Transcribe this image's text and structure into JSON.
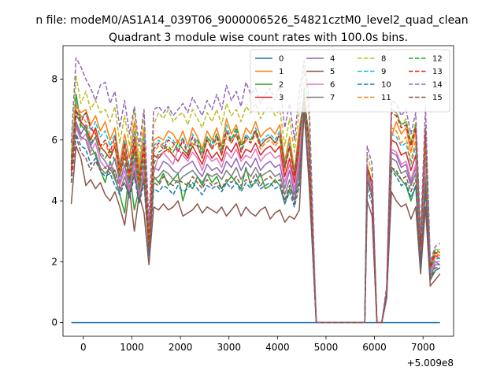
{
  "suptitle": "n file: modeM0/AS1A14_039T06_9000006526_54821cztM0_level2_quad_clean",
  "chart_data": {
    "type": "line",
    "title": "Quadrant 3 module wise count rates with 100.0s bins.",
    "xlabel": "",
    "ylabel": "",
    "x_offset_label": "+5.009e8",
    "xlim": [
      -420,
      7630
    ],
    "ylim": [
      -0.45,
      9.1
    ],
    "xticks": [
      0,
      1000,
      2000,
      3000,
      4000,
      5000,
      6000,
      7000
    ],
    "yticks": [
      0,
      2,
      4,
      6,
      8
    ],
    "grid": false,
    "legend": {
      "placement": "top-right",
      "columns": 4
    },
    "x": [
      -250,
      -150,
      -50,
      50,
      150,
      250,
      350,
      450,
      550,
      650,
      750,
      850,
      950,
      1050,
      1150,
      1250,
      1350,
      1450,
      1550,
      1650,
      1750,
      1850,
      1950,
      2050,
      2150,
      2250,
      2350,
      2450,
      2550,
      2650,
      2750,
      2850,
      2950,
      3050,
      3150,
      3250,
      3350,
      3450,
      3550,
      3650,
      3750,
      3850,
      3950,
      4050,
      4150,
      4250,
      4350,
      4450,
      4550,
      4650,
      4800,
      5000,
      5200,
      5400,
      5600,
      5800,
      5850,
      5950,
      6050,
      6150,
      6250,
      6350,
      6450,
      6550,
      6650,
      6750,
      6850,
      6950,
      7050,
      7150,
      7250,
      7350
    ],
    "series": [
      {
        "name": "0",
        "values": [
          0,
          0,
          0,
          0,
          0,
          0,
          0,
          0,
          0,
          0,
          0,
          0,
          0,
          0,
          0,
          0,
          0,
          0,
          0,
          0,
          0,
          0,
          0,
          0,
          0,
          0,
          0,
          0,
          0,
          0,
          0,
          0,
          0,
          0,
          0,
          0,
          0,
          0,
          0,
          0,
          0,
          0,
          0,
          0,
          0,
          0,
          0,
          0,
          0,
          0,
          0,
          0,
          0,
          0,
          0,
          0,
          0,
          0,
          0,
          0,
          0,
          0,
          0,
          0,
          0,
          0,
          0,
          0,
          0,
          0,
          0,
          0
        ]
      },
      {
        "name": "1",
        "values": [
          5.5,
          7.1,
          6.9,
          7.0,
          6.5,
          6.8,
          6.3,
          6.6,
          6.0,
          6.4,
          5.2,
          6.2,
          5.4,
          6.6,
          5.0,
          6.4,
          2.8,
          6.0,
          6.1,
          6.0,
          6.3,
          6.2,
          5.9,
          6.3,
          5.8,
          6.4,
          6.1,
          5.7,
          6.3,
          6.0,
          6.4,
          5.8,
          6.7,
          6.2,
          6.5,
          5.9,
          6.4,
          6.2,
          6.6,
          6.1,
          6.3,
          6.4,
          6.2,
          6.5,
          5.3,
          6.1,
          5.0,
          6.4,
          7.3,
          6.2,
          0,
          0,
          0,
          0,
          0,
          0,
          5.2,
          4.6,
          0,
          0,
          1.0,
          6.1,
          6.6,
          6.2,
          6.4,
          5.6,
          6.3,
          2.6,
          6.2,
          1.8,
          2.3,
          2.2
        ]
      },
      {
        "name": "2",
        "values": [
          4.8,
          7.5,
          6.5,
          6.3,
          5.8,
          5.5,
          5.0,
          4.6,
          5.3,
          4.8,
          4.2,
          3.6,
          5.0,
          3.7,
          4.4,
          5.0,
          2.6,
          4.8,
          4.6,
          4.9,
          4.5,
          4.7,
          4.9,
          4.0,
          4.6,
          4.4,
          4.8,
          4.5,
          4.9,
          4.6,
          4.8,
          4.4,
          4.6,
          4.8,
          4.6,
          4.4,
          5.1,
          4.5,
          4.6,
          4.9,
          4.4,
          4.5,
          4.7,
          4.5,
          3.9,
          4.4,
          4.2,
          4.6,
          7.7,
          5.0,
          0,
          0,
          0,
          0,
          0,
          0,
          4.6,
          4.2,
          0,
          0,
          0.9,
          5.1,
          4.9,
          4.7,
          4.5,
          4.0,
          4.5,
          1.9,
          4.4,
          1.4,
          1.7,
          1.8
        ]
      },
      {
        "name": "3",
        "values": [
          5.4,
          6.8,
          6.6,
          6.4,
          6.0,
          6.4,
          5.8,
          5.6,
          5.4,
          5.8,
          4.8,
          5.6,
          4.7,
          5.8,
          4.5,
          5.7,
          2.5,
          5.5,
          5.4,
          5.6,
          5.7,
          5.5,
          5.3,
          5.6,
          5.4,
          5.8,
          5.5,
          5.2,
          5.7,
          5.4,
          5.6,
          5.3,
          5.8,
          5.6,
          5.9,
          5.4,
          5.7,
          5.6,
          5.9,
          5.5,
          5.7,
          5.8,
          5.6,
          5.8,
          4.8,
          5.4,
          4.6,
          5.8,
          7.5,
          5.6,
          0,
          0,
          0,
          0,
          0,
          0,
          5.0,
          4.6,
          0,
          0,
          1.0,
          6.0,
          5.9,
          5.5,
          5.6,
          5.0,
          5.5,
          2.3,
          5.4,
          1.7,
          2.2,
          2.1
        ]
      },
      {
        "name": "4",
        "values": [
          5.2,
          6.6,
          6.2,
          6.5,
          5.8,
          6.1,
          5.5,
          5.3,
          5.0,
          5.4,
          4.6,
          5.2,
          4.4,
          5.4,
          4.2,
          5.2,
          2.4,
          5.1,
          5.0,
          5.3,
          5.2,
          5.0,
          4.9,
          5.1,
          5.2,
          5.3,
          5.0,
          4.8,
          5.2,
          5.0,
          5.1,
          4.9,
          5.3,
          5.1,
          5.4,
          5.0,
          5.3,
          5.1,
          5.4,
          5.0,
          5.2,
          5.3,
          5.1,
          5.2,
          4.4,
          5.0,
          4.2,
          5.3,
          7.2,
          5.1,
          0,
          0,
          0,
          0,
          0,
          0,
          4.8,
          4.3,
          0,
          0,
          0.9,
          5.6,
          5.5,
          5.1,
          5.2,
          4.6,
          5.1,
          2.1,
          5.0,
          1.6,
          2.0,
          1.9
        ]
      },
      {
        "name": "5",
        "values": [
          3.9,
          5.8,
          5.4,
          4.5,
          4.7,
          4.4,
          4.6,
          4.2,
          4.0,
          4.3,
          3.8,
          3.2,
          4.4,
          3.0,
          4.2,
          3.6,
          1.9,
          3.8,
          3.7,
          3.9,
          3.7,
          3.8,
          4.0,
          3.5,
          3.6,
          3.7,
          3.9,
          3.6,
          3.8,
          3.7,
          3.6,
          3.8,
          3.5,
          3.7,
          3.9,
          3.5,
          3.8,
          3.6,
          3.5,
          3.7,
          3.8,
          3.4,
          3.6,
          3.7,
          3.3,
          3.5,
          3.4,
          3.7,
          7.0,
          4.6,
          0,
          0,
          0,
          0,
          0,
          0,
          4.0,
          3.5,
          0,
          0,
          0.8,
          4.3,
          4.0,
          3.8,
          3.9,
          3.4,
          3.8,
          1.6,
          3.8,
          1.2,
          1.4,
          1.6
        ]
      },
      {
        "name": "6",
        "values": [
          5.0,
          6.4,
          6.0,
          6.2,
          5.6,
          5.9,
          5.3,
          5.1,
          5.2,
          5.0,
          4.5,
          5.0,
          4.3,
          5.2,
          4.1,
          5.0,
          2.3,
          4.9,
          5.5,
          5.6,
          5.4,
          5.2,
          5.7,
          5.5,
          5.3,
          5.6,
          5.4,
          5.0,
          5.5,
          5.3,
          5.4,
          5.1,
          5.6,
          5.4,
          5.7,
          5.3,
          5.5,
          5.4,
          5.7,
          5.3,
          5.5,
          5.6,
          5.4,
          5.5,
          4.6,
          5.2,
          4.4,
          5.5,
          7.4,
          5.4,
          0,
          0,
          0,
          0,
          0,
          0,
          4.9,
          4.4,
          0,
          0,
          0.9,
          5.7,
          5.6,
          5.2,
          5.3,
          4.7,
          5.2,
          2.2,
          5.1,
          1.6,
          2.0,
          2.0
        ]
      },
      {
        "name": "7",
        "values": [
          4.9,
          6.5,
          6.1,
          6.0,
          5.5,
          5.6,
          5.1,
          4.9,
          5.1,
          4.7,
          4.3,
          4.8,
          4.2,
          5.0,
          4.0,
          4.8,
          2.2,
          4.7,
          4.8,
          5.0,
          4.9,
          4.7,
          4.6,
          4.8,
          4.9,
          5.0,
          4.8,
          4.6,
          4.9,
          4.8,
          4.9,
          4.7,
          5.0,
          4.8,
          5.1,
          4.7,
          5.0,
          4.8,
          5.1,
          4.8,
          4.9,
          5.0,
          4.8,
          4.9,
          4.2,
          4.7,
          4.0,
          5.0,
          7.1,
          4.9,
          0,
          0,
          0,
          0,
          0,
          0,
          4.7,
          4.2,
          0,
          0,
          0.9,
          5.4,
          5.3,
          4.9,
          5.0,
          4.5,
          4.9,
          2.0,
          4.8,
          1.5,
          1.9,
          1.9
        ]
      },
      {
        "name": "8",
        "values": [
          5.6,
          8.1,
          7.2,
          7.6,
          7.0,
          7.3,
          6.9,
          7.0,
          6.6,
          7.1,
          5.9,
          6.8,
          5.8,
          7.0,
          5.3,
          6.9,
          3.0,
          6.5,
          6.9,
          6.7,
          7.0,
          6.6,
          6.8,
          6.9,
          6.5,
          7.0,
          6.7,
          6.4,
          6.9,
          6.6,
          7.0,
          6.5,
          7.2,
          6.8,
          7.0,
          6.6,
          7.1,
          6.9,
          7.2,
          6.7,
          7.0,
          7.1,
          6.8,
          7.0,
          5.8,
          6.7,
          5.6,
          7.0,
          8.3,
          6.8,
          0,
          0,
          0,
          0,
          0,
          0,
          5.5,
          4.9,
          0,
          0,
          1.1,
          7.0,
          6.9,
          6.5,
          6.7,
          5.9,
          6.6,
          2.7,
          6.5,
          1.9,
          2.4,
          2.4
        ]
      },
      {
        "name": "9",
        "values": [
          5.3,
          7.3,
          6.7,
          6.9,
          6.3,
          6.6,
          6.1,
          6.3,
          5.8,
          6.2,
          5.1,
          6.0,
          5.1,
          6.3,
          4.8,
          6.1,
          2.7,
          5.8,
          6.0,
          5.8,
          6.1,
          6.0,
          5.7,
          6.1,
          5.6,
          6.2,
          5.9,
          5.5,
          6.1,
          5.8,
          6.2,
          5.6,
          6.5,
          6.0,
          6.3,
          5.7,
          6.2,
          6.0,
          6.4,
          5.9,
          6.1,
          6.2,
          6.0,
          6.3,
          5.2,
          5.9,
          4.9,
          6.2,
          7.6,
          6.0,
          0,
          0,
          0,
          0,
          0,
          0,
          5.1,
          4.5,
          0,
          0,
          1.0,
          6.2,
          6.1,
          5.8,
          5.9,
          5.2,
          5.8,
          2.4,
          5.7,
          1.7,
          2.1,
          2.1
        ]
      },
      {
        "name": "10",
        "values": [
          4.6,
          6.2,
          5.8,
          5.7,
          5.2,
          5.4,
          5.0,
          4.8,
          4.9,
          4.5,
          4.2,
          4.6,
          4.1,
          4.8,
          3.9,
          4.6,
          2.2,
          4.4,
          4.3,
          4.5,
          4.4,
          4.2,
          4.5,
          4.3,
          4.4,
          4.6,
          4.4,
          4.2,
          4.5,
          4.4,
          4.5,
          4.3,
          4.6,
          4.4,
          4.6,
          4.3,
          4.6,
          4.4,
          4.7,
          4.4,
          4.5,
          4.6,
          4.4,
          4.5,
          3.9,
          4.3,
          3.8,
          4.5,
          7.0,
          4.8,
          0,
          0,
          0,
          0,
          0,
          0,
          4.4,
          3.9,
          0,
          0,
          0.8,
          5.0,
          4.8,
          4.5,
          4.6,
          4.1,
          4.5,
          1.8,
          4.4,
          1.4,
          1.7,
          1.8
        ]
      },
      {
        "name": "11",
        "values": [
          5.1,
          7.2,
          6.8,
          6.6,
          6.1,
          6.3,
          5.7,
          5.9,
          5.5,
          5.9,
          4.9,
          5.8,
          4.8,
          6.0,
          4.6,
          5.8,
          2.6,
          5.6,
          5.8,
          5.9,
          5.6,
          5.8,
          6.0,
          5.7,
          5.5,
          5.9,
          5.8,
          5.4,
          6.0,
          5.7,
          5.9,
          5.5,
          6.1,
          5.9,
          6.2,
          5.6,
          6.0,
          5.9,
          6.2,
          5.7,
          5.9,
          6.0,
          5.8,
          6.0,
          5.0,
          5.7,
          4.8,
          6.0,
          7.4,
          5.8,
          0,
          0,
          0,
          0,
          0,
          0,
          5.0,
          4.5,
          0,
          0,
          1.0,
          6.4,
          6.3,
          5.9,
          6.1,
          5.3,
          6.0,
          2.4,
          5.9,
          1.8,
          2.2,
          2.2
        ]
      },
      {
        "name": "12",
        "values": [
          5.2,
          7.0,
          6.4,
          6.4,
          5.9,
          6.1,
          5.6,
          5.4,
          5.7,
          5.3,
          4.8,
          5.4,
          4.6,
          5.6,
          4.4,
          5.4,
          2.5,
          5.2,
          5.6,
          5.7,
          5.8,
          5.6,
          5.9,
          5.7,
          5.5,
          5.8,
          6.0,
          5.6,
          6.1,
          5.9,
          6.2,
          5.7,
          6.3,
          6.0,
          6.4,
          5.8,
          6.1,
          6.0,
          6.3,
          5.8,
          6.0,
          6.1,
          5.9,
          6.1,
          5.1,
          5.8,
          4.9,
          6.1,
          7.3,
          5.7,
          0,
          0,
          0,
          0,
          0,
          0,
          5.0,
          4.5,
          0,
          0,
          1.0,
          7.0,
          6.9,
          6.5,
          6.6,
          5.9,
          6.5,
          2.6,
          6.4,
          1.9,
          2.4,
          2.3
        ]
      },
      {
        "name": "13",
        "values": [
          5.0,
          7.0,
          6.6,
          6.9,
          6.4,
          6.2,
          5.8,
          6.0,
          5.6,
          6.1,
          5.0,
          5.9,
          4.9,
          6.1,
          4.7,
          5.9,
          2.6,
          5.7,
          5.9,
          5.7,
          6.0,
          5.9,
          5.6,
          6.0,
          5.5,
          6.1,
          5.8,
          5.4,
          6.0,
          5.7,
          6.1,
          5.5,
          6.3,
          5.9,
          6.2,
          5.6,
          6.1,
          5.9,
          6.3,
          5.8,
          6.0,
          6.1,
          5.9,
          6.2,
          5.1,
          5.8,
          4.8,
          6.1,
          7.4,
          5.9,
          0,
          0,
          0,
          0,
          0,
          0,
          5.1,
          4.6,
          0,
          0,
          1.0,
          6.9,
          6.8,
          6.4,
          6.5,
          5.8,
          6.4,
          2.5,
          6.3,
          1.8,
          2.3,
          2.3
        ]
      },
      {
        "name": "14",
        "values": [
          5.9,
          8.7,
          8.4,
          8.0,
          7.7,
          7.3,
          7.8,
          7.9,
          7.2,
          7.6,
          6.4,
          7.3,
          6.2,
          7.1,
          5.8,
          7.0,
          3.3,
          7.0,
          7.1,
          6.9,
          7.1,
          6.8,
          7.0,
          7.2,
          6.9,
          7.4,
          7.1,
          6.8,
          7.3,
          7.0,
          7.5,
          7.0,
          7.8,
          7.3,
          7.6,
          7.1,
          7.9,
          7.5,
          7.7,
          7.2,
          7.5,
          7.7,
          7.3,
          7.8,
          6.4,
          7.2,
          6.0,
          7.6,
          8.6,
          7.4,
          0,
          0,
          0,
          0,
          0,
          0,
          5.8,
          5.2,
          0,
          0,
          1.2,
          7.3,
          7.2,
          6.8,
          7.0,
          6.2,
          6.9,
          2.9,
          7.1,
          2.0,
          2.5,
          2.6
        ]
      },
      {
        "name": "15",
        "values": [
          4.6,
          6.1,
          5.6,
          5.4,
          5.0,
          5.3,
          5.0,
          5.1,
          4.9,
          5.0,
          4.4,
          4.6,
          4.2,
          4.9,
          4.0,
          4.7,
          2.3,
          4.6,
          4.5,
          4.8,
          4.6,
          4.5,
          4.7,
          4.6,
          4.5,
          4.8,
          4.6,
          4.4,
          4.7,
          4.5,
          4.6,
          4.4,
          4.7,
          4.6,
          4.8,
          4.5,
          4.7,
          4.6,
          4.9,
          4.5,
          4.7,
          4.8,
          4.6,
          4.7,
          4.0,
          4.5,
          3.9,
          4.7,
          6.9,
          4.7,
          0,
          0,
          0,
          0,
          0,
          0,
          4.6,
          4.1,
          0,
          0,
          0.9,
          5.1,
          5.0,
          4.7,
          4.8,
          4.3,
          4.7,
          1.9,
          4.6,
          1.4,
          1.8,
          1.8
        ]
      }
    ]
  },
  "colors": [
    "#1f77b4",
    "#ff7f0e",
    "#2ca02c",
    "#d62728",
    "#9467bd",
    "#8c564b",
    "#e377c2",
    "#7f7f7f",
    "#bcbd22",
    "#17becf",
    "#1f77b4",
    "#ff7f0e",
    "#2ca02c",
    "#d62728",
    "#9467bd",
    "#8c564b"
  ],
  "dashed_from_index": 8
}
